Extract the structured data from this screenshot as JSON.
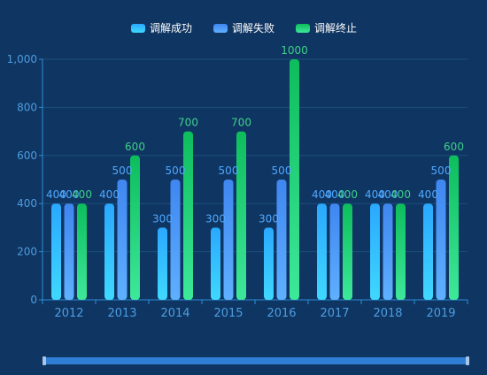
{
  "chart_data": {
    "type": "bar",
    "categories": [
      "2012",
      "2013",
      "2014",
      "2015",
      "2016",
      "2017",
      "2018",
      "2019"
    ],
    "series": [
      {
        "name": "调解成功",
        "values": [
          400,
          400,
          300,
          300,
          300,
          400,
          400,
          400
        ]
      },
      {
        "name": "调解失败",
        "values": [
          400,
          500,
          500,
          500,
          500,
          400,
          400,
          500
        ]
      },
      {
        "name": "调解终止",
        "values": [
          400,
          600,
          700,
          700,
          1000,
          400,
          400,
          600
        ]
      }
    ],
    "y_ticks": [
      "0",
      "200",
      "400",
      "600",
      "800",
      "1,000"
    ],
    "ylim": [
      0,
      1000
    ],
    "grid": true,
    "legend_position": "top-center",
    "data_labels": true,
    "colors": {
      "series": [
        {
          "top": "#2aa8ff",
          "bottom": "#3fd8ff",
          "label": "#4fa8ff"
        },
        {
          "top": "#3f86f0",
          "bottom": "#5fb0ff",
          "label": "#4fa8ff"
        },
        {
          "top": "#0dbd5c",
          "bottom": "#3ee89a",
          "label": "#3ed08a"
        }
      ],
      "axis": "#2e8fd8",
      "tick_text": "#4d9de0",
      "grid": "#1c4f7e",
      "legend_text": "#ffffff",
      "slider": "#2f7fd6",
      "slider_handle": "#a9c6e8"
    }
  },
  "data_zoom": {
    "start_percent": 0,
    "end_percent": 100
  }
}
